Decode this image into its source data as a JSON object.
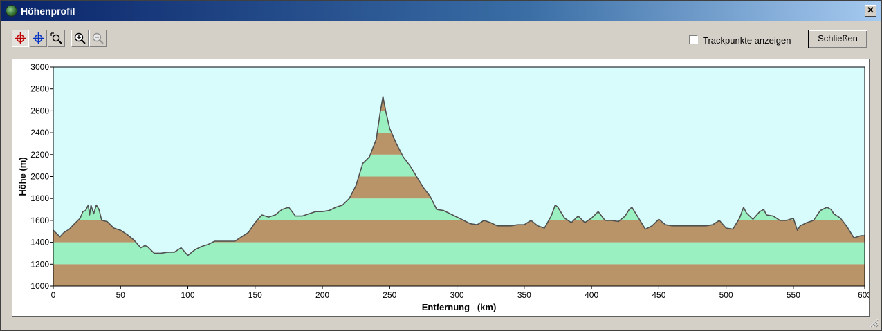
{
  "window": {
    "title": "Höhenprofil",
    "close_glyph": "✕"
  },
  "toolbar": {
    "buttons": [
      {
        "icon": "crosshair-red-icon",
        "pressed": true
      },
      {
        "icon": "crosshair-blue-icon",
        "pressed": false
      },
      {
        "icon": "zoom-box-icon",
        "pressed": false
      },
      {
        "icon": "zoom-in-icon",
        "pressed": false
      },
      {
        "icon": "zoom-out-icon",
        "pressed": false,
        "disabled": true
      }
    ]
  },
  "options": {
    "trackpoints_label": "Trackpunkte anzeigen",
    "trackpoints_checked": false
  },
  "close_button_label": "Schließen",
  "colors": {
    "band_brown": "#b89468",
    "band_green": "#9af0c0",
    "sky": "#d8fcfc",
    "line": "#505050"
  },
  "chart_data": {
    "type": "area",
    "xlabel": "Entfernung   (km)",
    "ylabel": "Höhe (m)",
    "xlim": [
      0,
      603
    ],
    "ylim": [
      1000,
      3000
    ],
    "x_ticks": [
      "0",
      "50",
      "100",
      "150",
      "200",
      "250",
      "300",
      "350",
      "400",
      "450",
      "500",
      "550",
      "603"
    ],
    "y_ticks": [
      "1000",
      "1200",
      "1400",
      "1600",
      "1800",
      "2000",
      "2200",
      "2400",
      "2600",
      "2800",
      "3000"
    ],
    "bands": {
      "step": 200,
      "colors": [
        "#b89468",
        "#9af0c0"
      ]
    },
    "grid": false,
    "legend": "none",
    "x": [
      0,
      5,
      8,
      12,
      15,
      20,
      22,
      24,
      26,
      27,
      28,
      30,
      32,
      34,
      36,
      40,
      45,
      50,
      55,
      60,
      65,
      68,
      70,
      75,
      80,
      85,
      90,
      95,
      100,
      105,
      110,
      115,
      120,
      125,
      130,
      135,
      140,
      145,
      150,
      155,
      160,
      165,
      170,
      175,
      180,
      185,
      190,
      195,
      200,
      205,
      210,
      215,
      220,
      225,
      230,
      235,
      240,
      243,
      245,
      247,
      250,
      255,
      260,
      265,
      270,
      275,
      280,
      285,
      290,
      295,
      300,
      305,
      310,
      315,
      320,
      325,
      330,
      335,
      340,
      345,
      350,
      355,
      360,
      365,
      370,
      373,
      375,
      378,
      380,
      385,
      390,
      395,
      400,
      405,
      410,
      415,
      420,
      425,
      428,
      430,
      435,
      440,
      445,
      450,
      455,
      460,
      465,
      470,
      475,
      480,
      485,
      490,
      495,
      500,
      505,
      510,
      513,
      515,
      520,
      525,
      528,
      530,
      535,
      540,
      545,
      550,
      553,
      555,
      560,
      565,
      570,
      575,
      578,
      580,
      585,
      590,
      595,
      600,
      603
    ],
    "y": [
      1510,
      1450,
      1490,
      1520,
      1560,
      1620,
      1680,
      1690,
      1740,
      1650,
      1740,
      1660,
      1740,
      1700,
      1600,
      1590,
      1530,
      1510,
      1470,
      1420,
      1350,
      1370,
      1360,
      1300,
      1300,
      1310,
      1310,
      1350,
      1280,
      1330,
      1360,
      1380,
      1410,
      1410,
      1410,
      1410,
      1450,
      1490,
      1580,
      1650,
      1630,
      1650,
      1700,
      1720,
      1640,
      1640,
      1660,
      1680,
      1680,
      1690,
      1720,
      1740,
      1800,
      1920,
      2120,
      2180,
      2340,
      2590,
      2730,
      2600,
      2440,
      2300,
      2180,
      2100,
      2000,
      1900,
      1820,
      1700,
      1690,
      1660,
      1630,
      1600,
      1570,
      1560,
      1600,
      1580,
      1550,
      1550,
      1550,
      1560,
      1560,
      1600,
      1550,
      1530,
      1640,
      1740,
      1720,
      1660,
      1620,
      1580,
      1640,
      1580,
      1620,
      1680,
      1600,
      1600,
      1590,
      1640,
      1700,
      1720,
      1620,
      1520,
      1550,
      1610,
      1560,
      1550,
      1550,
      1550,
      1550,
      1550,
      1550,
      1560,
      1600,
      1530,
      1520,
      1620,
      1720,
      1670,
      1610,
      1680,
      1700,
      1650,
      1640,
      1600,
      1600,
      1620,
      1510,
      1550,
      1580,
      1600,
      1690,
      1720,
      1700,
      1660,
      1620,
      1540,
      1440,
      1460,
      1460
    ]
  }
}
